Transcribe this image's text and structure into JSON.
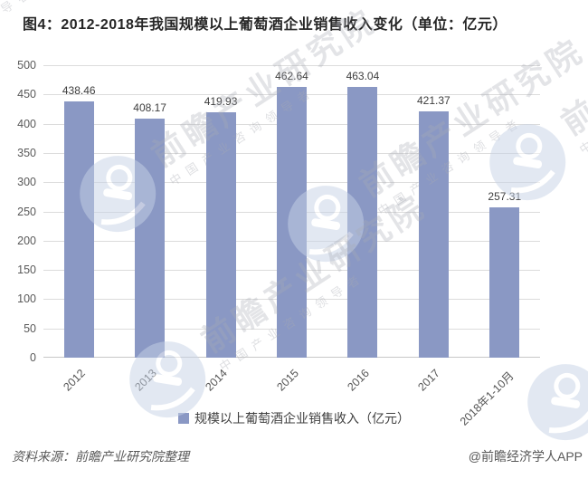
{
  "title": "图4：2012-2018年我国规模以上葡萄酒企业销售收入变化（单位：亿元）",
  "chart_data": {
    "type": "bar",
    "title": "图4：2012-2018年我国规模以上葡萄酒企业销售收入变化（单位：亿元）",
    "categories": [
      "2012",
      "2013",
      "2014",
      "2015",
      "2016",
      "2017",
      "2018年1-10月"
    ],
    "values": [
      438.46,
      408.17,
      419.93,
      462.64,
      463.04,
      421.37,
      257.31
    ],
    "series_name": "规模以上葡萄酒企业销售收入（亿元）",
    "xlabel": "",
    "ylabel": "",
    "ylim": [
      0,
      500
    ],
    "ytick_step": 50,
    "grid": true,
    "value_labels": true,
    "legend_position": "bottom",
    "bar_color": "#8A98C4",
    "gridline_color": "#dcdcdc",
    "label_color": "#3d3d3d"
  },
  "legend": {
    "swatch_color": "#8A98C4",
    "label": "规模以上葡萄酒企业销售收入（亿元）"
  },
  "footer": {
    "source": "资料来源：前瞻产业研究院整理",
    "credit": "@前瞻经济学人APP"
  },
  "watermark": {
    "brand": "前瞻产业研究院",
    "tagline": "中国产业咨询领导者",
    "logo": "qianzhan-globe-logo"
  }
}
